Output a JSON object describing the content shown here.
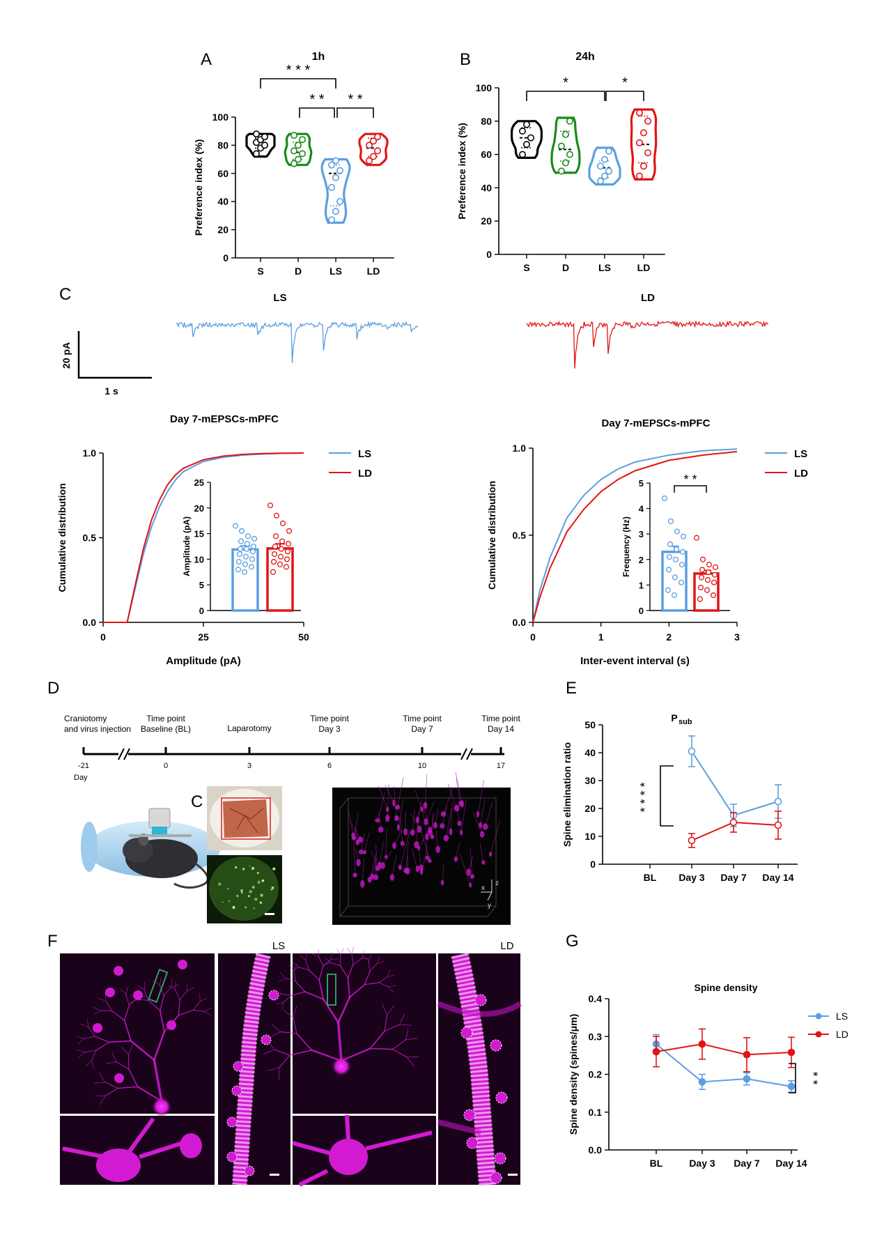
{
  "colors": {
    "S": "#000000",
    "D": "#178a17",
    "LS": "#5b9ee1",
    "LD": "#e01414",
    "magenta": "#d21ad2",
    "green_box": "#2aa060"
  },
  "panel_letters": {
    "A": "A",
    "B": "B",
    "C": "C",
    "C_inset": "C",
    "D": "D",
    "E": "E",
    "F": "F",
    "G": "G"
  },
  "chart_data": [
    {
      "id": "A",
      "type": "violin",
      "title": "1h",
      "ylabel": "Preference index (%)",
      "categories": [
        "S",
        "D",
        "LS",
        "LD"
      ],
      "ylim": [
        0,
        100
      ],
      "yticks": [
        0,
        20,
        40,
        60,
        80,
        100
      ],
      "series": [
        {
          "name": "S",
          "median": 82,
          "q1": 78,
          "q3": 85,
          "min": 72,
          "max": 88,
          "points": [
            74,
            78,
            80,
            82,
            84,
            86,
            88
          ]
        },
        {
          "name": "D",
          "median": 75,
          "q1": 70,
          "q3": 82,
          "min": 66,
          "max": 88,
          "points": [
            67,
            70,
            74,
            76,
            80,
            84,
            87
          ]
        },
        {
          "name": "LS",
          "median": 60,
          "q1": 37,
          "q3": 66,
          "min": 25,
          "max": 70,
          "points": [
            27,
            33,
            40,
            50,
            57,
            62,
            66,
            69
          ]
        },
        {
          "name": "LD",
          "median": 78,
          "q1": 72,
          "q3": 85,
          "min": 66,
          "max": 88,
          "points": [
            69,
            72,
            76,
            80,
            83,
            86
          ]
        }
      ],
      "significance": [
        {
          "from": "S",
          "to": "LS",
          "label": "* * *"
        },
        {
          "from": "D",
          "to": "LS",
          "label": "* *"
        },
        {
          "from": "LS",
          "to": "LD",
          "label": "* *"
        }
      ]
    },
    {
      "id": "B",
      "type": "violin",
      "title": "24h",
      "ylabel": "Preference index (%)",
      "categories": [
        "S",
        "D",
        "LS",
        "LD"
      ],
      "ylim": [
        0,
        100
      ],
      "yticks": [
        0,
        20,
        40,
        60,
        80,
        100
      ],
      "series": [
        {
          "name": "S",
          "median": 70,
          "q1": 64,
          "q3": 76,
          "min": 58,
          "max": 80,
          "points": [
            60,
            66,
            70,
            74,
            78
          ]
        },
        {
          "name": "D",
          "median": 63,
          "q1": 56,
          "q3": 74,
          "min": 49,
          "max": 82,
          "points": [
            50,
            55,
            60,
            65,
            72,
            80
          ]
        },
        {
          "name": "LS",
          "median": 52,
          "q1": 46,
          "q3": 56,
          "min": 42,
          "max": 64,
          "points": [
            44,
            47,
            50,
            53,
            57,
            62
          ]
        },
        {
          "name": "LD",
          "median": 66,
          "q1": 55,
          "q3": 83,
          "min": 45,
          "max": 87,
          "points": [
            47,
            53,
            61,
            67,
            73,
            80,
            85
          ]
        }
      ],
      "significance": [
        {
          "from": "S",
          "to": "LS",
          "label": "*"
        },
        {
          "from": "LS",
          "to": "LD",
          "label": "*"
        }
      ]
    },
    {
      "id": "C-amp",
      "type": "line",
      "title": "Day 7-mEPSCs-mPFC",
      "xlabel": "Amplitude (pA)",
      "ylabel": "Cumulative distribution",
      "xlim": [
        0,
        50
      ],
      "ylim": [
        0,
        1
      ],
      "xticks": [
        0,
        25,
        50
      ],
      "yticks": [
        "0.0",
        "0.5",
        "1.0"
      ],
      "legend": [
        "LS",
        "LD"
      ],
      "series": [
        {
          "name": "LS",
          "x": [
            0,
            6,
            8,
            10,
            12,
            14,
            16,
            18,
            20,
            25,
            30,
            35,
            40,
            45,
            50
          ],
          "y": [
            0,
            0,
            0.2,
            0.4,
            0.56,
            0.68,
            0.77,
            0.84,
            0.89,
            0.95,
            0.975,
            0.988,
            0.994,
            0.998,
            1.0
          ]
        },
        {
          "name": "LD",
          "x": [
            0,
            6,
            8,
            10,
            12,
            14,
            16,
            18,
            20,
            25,
            30,
            35,
            40,
            45,
            50
          ],
          "y": [
            0,
            0,
            0.22,
            0.43,
            0.6,
            0.72,
            0.81,
            0.87,
            0.91,
            0.96,
            0.982,
            0.992,
            0.997,
            0.999,
            1.0
          ]
        }
      ],
      "inset": {
        "type": "bar",
        "ylabel": "Amplitude (pA)",
        "ylim": [
          0,
          25
        ],
        "yticks": [
          0,
          5,
          10,
          15,
          20,
          25
        ],
        "categories": [
          "LS",
          "LD"
        ],
        "values": [
          11.9,
          12.1
        ],
        "sem": [
          0.7,
          0.9
        ],
        "points": [
          [
            16.5,
            15.5,
            14.5,
            14,
            13.5,
            13,
            12.5,
            12,
            12,
            11.5,
            11,
            10.5,
            10,
            9.5,
            9,
            8.5,
            8,
            7.5
          ],
          [
            20.5,
            18.5,
            17,
            15.5,
            14.5,
            13.5,
            13,
            12.5,
            12,
            11.5,
            11,
            10.5,
            10,
            9.5,
            9,
            8.5,
            7.5
          ]
        ]
      }
    },
    {
      "id": "C-iei",
      "type": "line",
      "title": "Day 7-mEPSCs-mPFC",
      "xlabel": "Inter-event interval (s)",
      "ylabel": "Cumulative distribution",
      "xlim": [
        0,
        3
      ],
      "ylim": [
        0,
        1
      ],
      "xticks": [
        0,
        1,
        2,
        3
      ],
      "yticks": [
        "0.0",
        "0.5",
        "1.0"
      ],
      "legend": [
        "LS",
        "LD"
      ],
      "series": [
        {
          "name": "LS",
          "x": [
            0,
            0.1,
            0.25,
            0.5,
            0.75,
            1,
            1.25,
            1.5,
            2,
            2.5,
            3
          ],
          "y": [
            0,
            0.18,
            0.37,
            0.6,
            0.73,
            0.82,
            0.88,
            0.92,
            0.96,
            0.985,
            0.995
          ]
        },
        {
          "name": "LD",
          "x": [
            0,
            0.1,
            0.25,
            0.5,
            0.75,
            1,
            1.25,
            1.5,
            2,
            2.5,
            3
          ],
          "y": [
            0,
            0.14,
            0.31,
            0.52,
            0.65,
            0.75,
            0.82,
            0.87,
            0.93,
            0.96,
            0.98
          ]
        }
      ],
      "inset": {
        "type": "bar",
        "ylabel": "Frequency (Hz)",
        "ylim": [
          0,
          5
        ],
        "yticks": [
          0,
          1,
          2,
          3,
          4,
          5
        ],
        "categories": [
          "LS",
          "LD"
        ],
        "values": [
          2.3,
          1.45
        ],
        "sem": [
          0.22,
          0.12
        ],
        "significance": "* *",
        "points": [
          [
            4.4,
            3.5,
            3.1,
            2.9,
            2.6,
            2.4,
            2.3,
            2.1,
            2.0,
            1.8,
            1.6,
            1.3,
            1.1,
            0.8,
            0.6
          ],
          [
            2.85,
            2.0,
            1.8,
            1.7,
            1.6,
            1.5,
            1.4,
            1.3,
            1.2,
            1.1,
            0.9,
            0.8,
            0.6,
            0.45
          ]
        ]
      }
    },
    {
      "id": "E",
      "type": "line",
      "title": "P",
      "title_sub": "sub",
      "ylabel": "Spine elimination ratio",
      "categories": [
        "BL",
        "Day 3",
        "Day 7",
        "Day 14"
      ],
      "ylim": [
        0,
        50
      ],
      "yticks": [
        0,
        10,
        20,
        30,
        40,
        50
      ],
      "series": [
        {
          "name": "LS",
          "values": [
            null,
            40.5,
            17.5,
            22.5
          ],
          "sem": [
            null,
            5.5,
            4,
            6
          ]
        },
        {
          "name": "LD",
          "values": [
            null,
            8.5,
            15,
            14
          ],
          "sem": [
            null,
            2.5,
            3.5,
            5
          ]
        }
      ],
      "significance": "* * * *"
    },
    {
      "id": "G",
      "type": "line",
      "title": "Spine density",
      "ylabel": "Spine density (spines/μm)",
      "categories": [
        "BL",
        "Day 3",
        "Day 7",
        "Day 14"
      ],
      "ylim": [
        0,
        0.4
      ],
      "yticks": [
        "0.0",
        "0.1",
        "0.2",
        "0.3",
        "0.4"
      ],
      "legend": [
        "LS",
        "LD"
      ],
      "series": [
        {
          "name": "LS",
          "values": [
            0.28,
            0.18,
            0.188,
            0.168
          ],
          "sem": [
            0.025,
            0.02,
            0.016,
            0.015
          ]
        },
        {
          "name": "LD",
          "values": [
            0.26,
            0.28,
            0.252,
            0.258
          ],
          "sem": [
            0.04,
            0.04,
            0.045,
            0.04
          ]
        }
      ],
      "significance": "* *"
    }
  ],
  "traces": {
    "LS": "LS",
    "LD": "LD",
    "scale_y": "20 pA",
    "scale_x": "1 s"
  },
  "timeline": {
    "events": [
      {
        "label": "Craniotomy\nand virus injection",
        "tick": "-21"
      },
      {
        "label": "Time point\nBaseline (BL)",
        "tick": "0"
      },
      {
        "label": "Laparotomy",
        "tick": "3"
      },
      {
        "label": "Time point\nDay 3",
        "tick": "6"
      },
      {
        "label": "Time point\nDay 7",
        "tick": "10"
      },
      {
        "label": "Time point\nDay 14",
        "tick": "17"
      }
    ],
    "unit": "Day"
  },
  "imaging": {
    "axis_x": "x",
    "axis_y": "y",
    "axis_z": "z"
  },
  "panel_F": {
    "label_LS": "LS",
    "label_LD": "LD"
  }
}
